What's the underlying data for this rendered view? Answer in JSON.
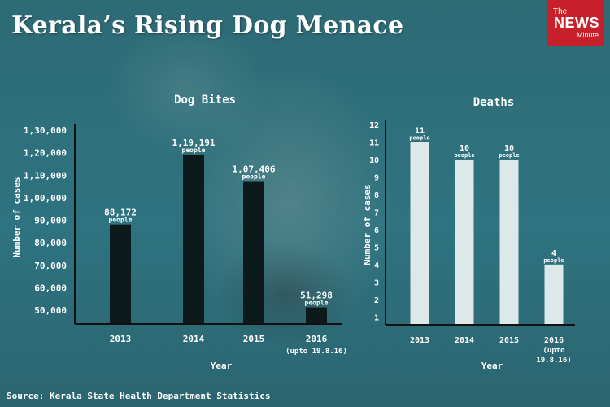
{
  "header": {
    "title": "Kerala’s Rising Dog Menace",
    "logo_the": "The",
    "logo_news": "NEWS",
    "logo_minute": "Minute"
  },
  "footer": {
    "source": "Source: Kerala State Health Department Statistics"
  },
  "colors": {
    "background": "#2f6f7a",
    "bites_bar": "#0d1a1b",
    "deaths_bar": "#dde9e8",
    "logo": "#c8202a"
  },
  "chart_data": [
    {
      "type": "bar",
      "title": "Dog Bites",
      "xlabel": "Year",
      "ylabel": "Number of cases",
      "categories": [
        "2013",
        "2014",
        "2015",
        "2016"
      ],
      "category_sublabels": [
        "",
        "",
        "",
        "(upto 19.8.16)"
      ],
      "values": [
        88172,
        119191,
        107406,
        51298
      ],
      "value_labels": [
        "88,172",
        "1,19,191",
        "1,07,406",
        "51,298"
      ],
      "value_unit": "people",
      "ylim": [
        45000,
        130000
      ],
      "yticks": [
        50000,
        60000,
        70000,
        80000,
        90000,
        100000,
        110000,
        120000,
        130000
      ],
      "ytick_labels": [
        "50,000",
        "60,000",
        "70,000",
        "80,000",
        "90,000",
        "1,00,000",
        "1,10,000",
        "1,20,000",
        "1,30,000"
      ],
      "grid": false,
      "legend": "none"
    },
    {
      "type": "bar",
      "title": "Deaths",
      "xlabel": "Year",
      "ylabel": "Number of cases",
      "categories": [
        "2013",
        "2014",
        "2015",
        "2016"
      ],
      "category_sublabels": [
        "",
        "",
        "",
        "(upto 19.8.16)"
      ],
      "values": [
        11,
        10,
        10,
        4
      ],
      "value_labels": [
        "11",
        "10",
        "10",
        "4"
      ],
      "value_unit": "people",
      "ylim": [
        0.5,
        12
      ],
      "yticks": [
        1,
        2,
        3,
        4,
        5,
        6,
        7,
        8,
        9,
        10,
        11,
        12
      ],
      "ytick_labels": [
        "1",
        "2",
        "3",
        "4",
        "5",
        "6",
        "7",
        "8",
        "9",
        "10",
        "11",
        "12"
      ],
      "grid": false,
      "legend": "none"
    }
  ]
}
